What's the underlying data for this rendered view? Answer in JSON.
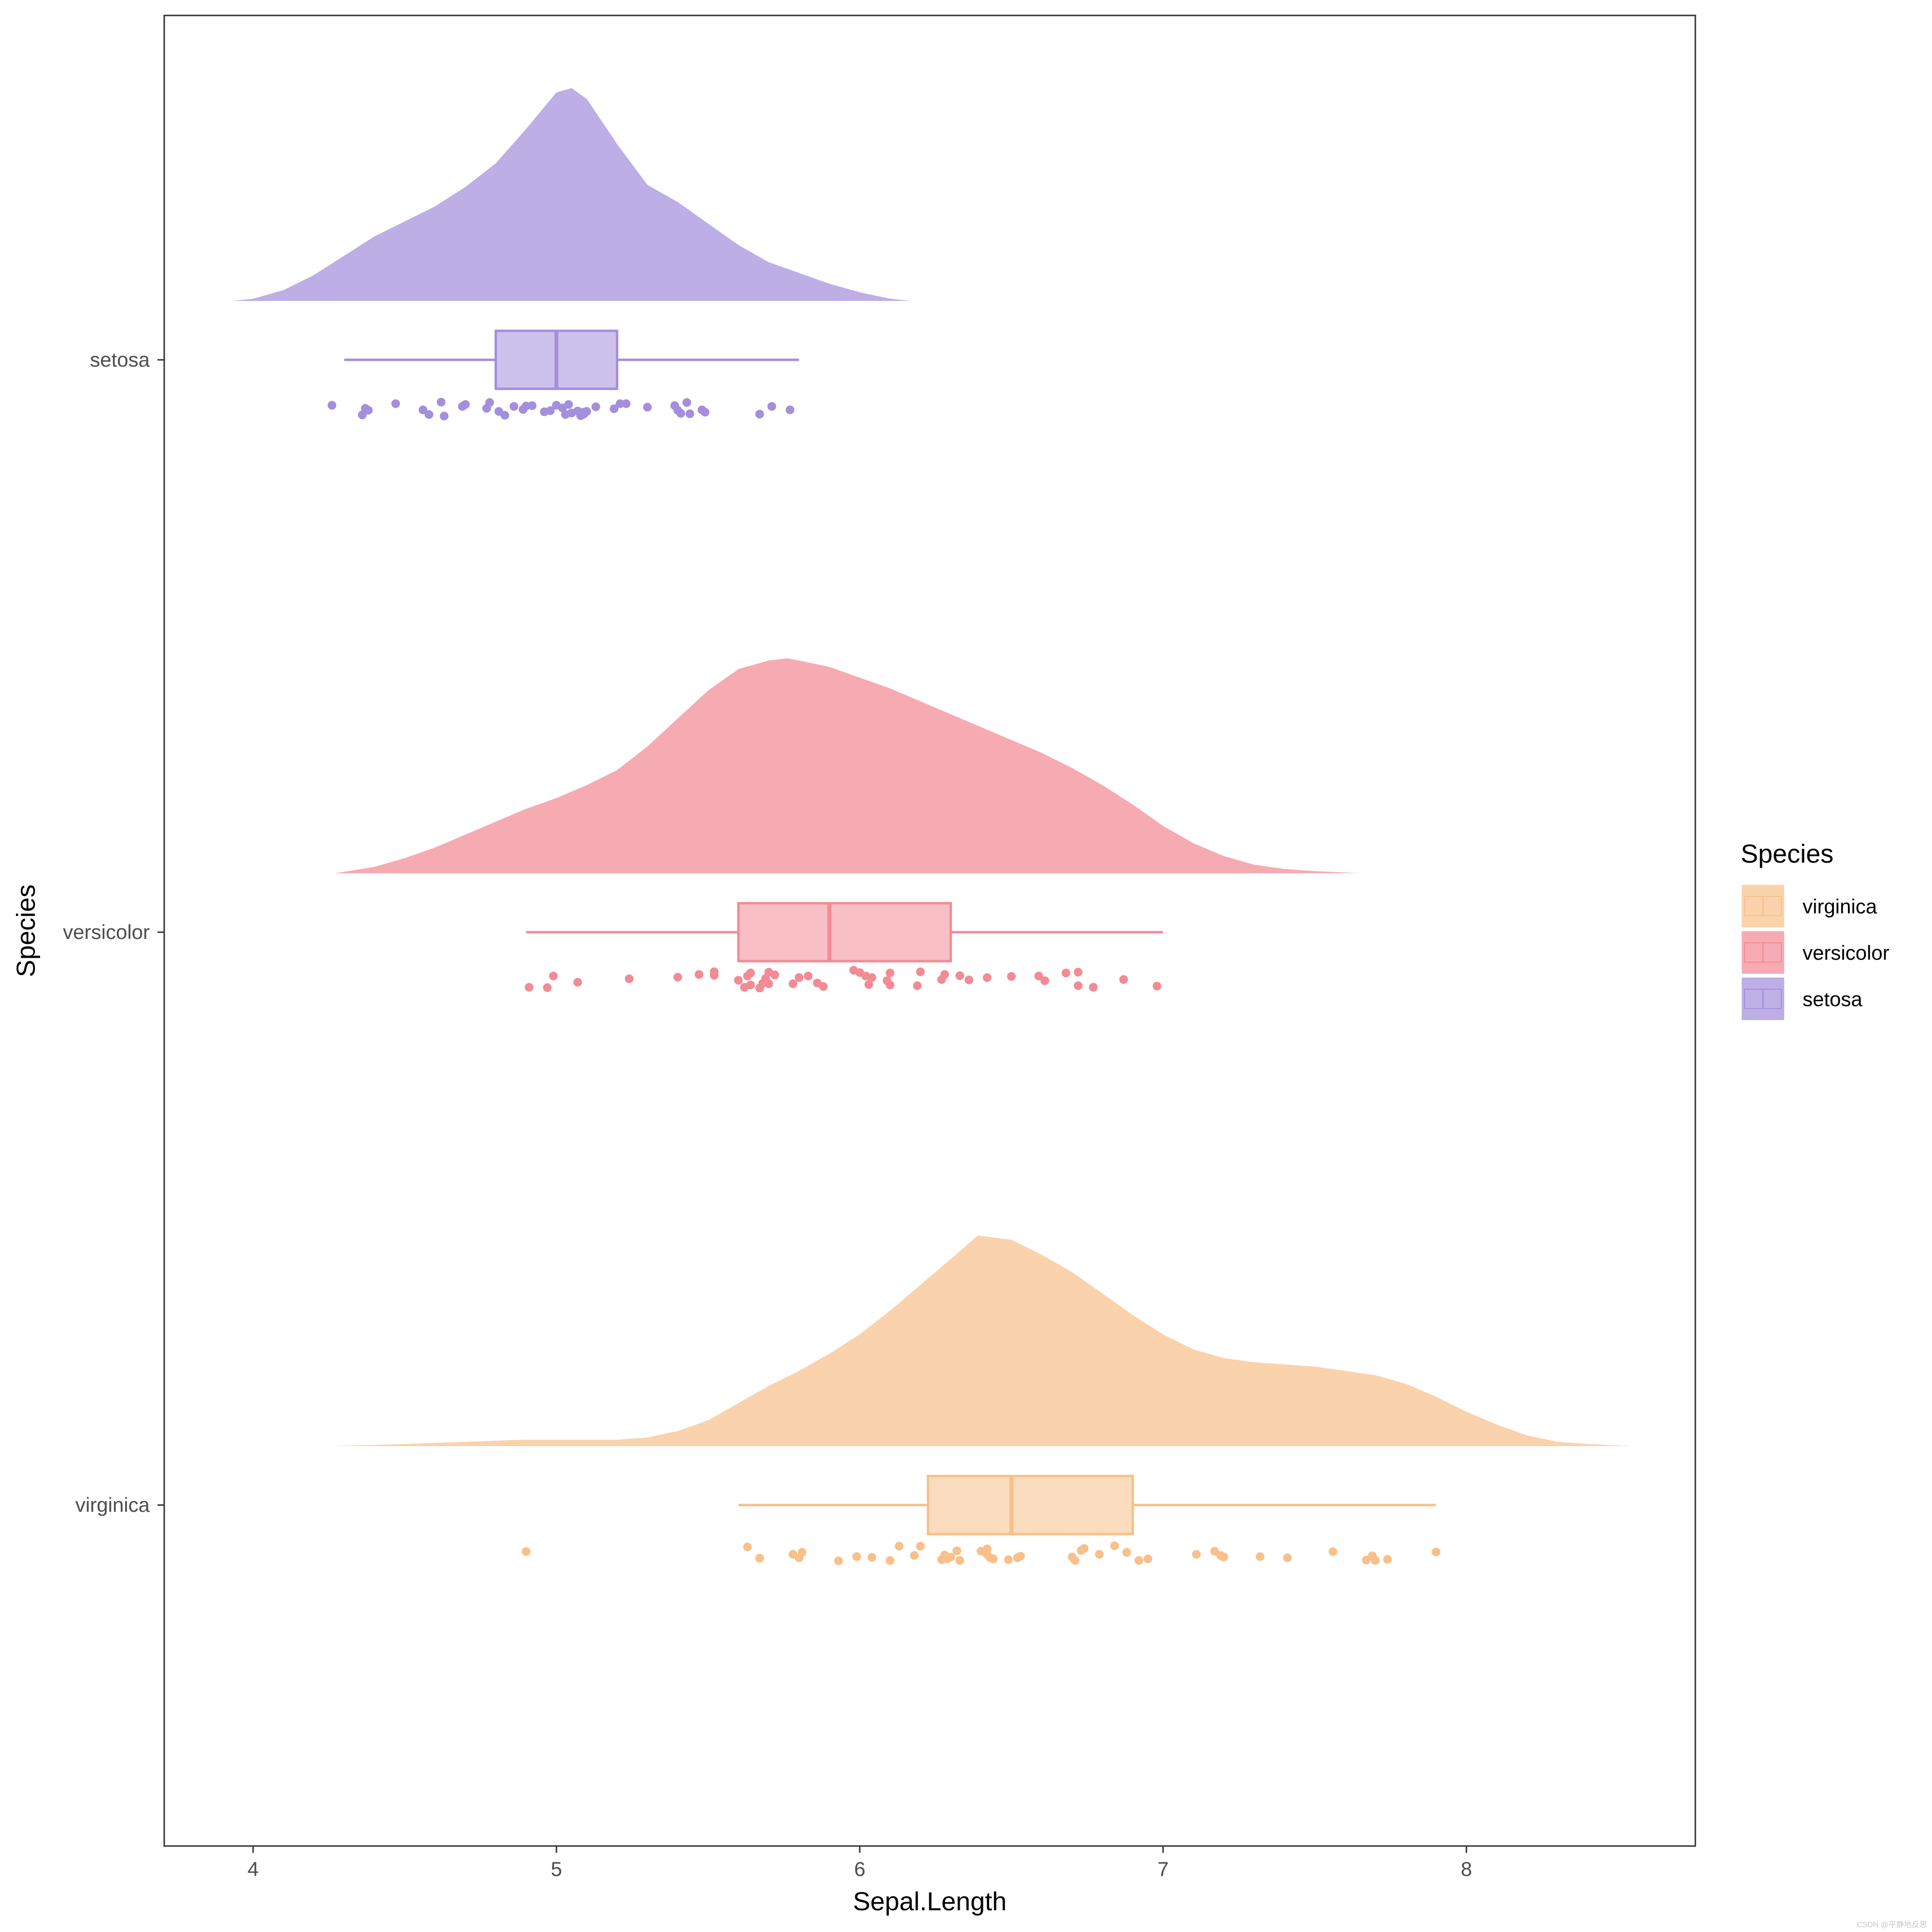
{
  "chart_data": {
    "type": "raincloud",
    "xlabel": "Sepal.Length",
    "ylabel": "Species",
    "xlim": [
      3.7,
      8.75
    ],
    "x_ticks": [
      4,
      5,
      6,
      7,
      8
    ],
    "grid": false,
    "legend": {
      "title": "Species",
      "placement": "right",
      "entries": [
        {
          "label": "virginica",
          "color": "#F8C08A"
        },
        {
          "label": "versicolor",
          "color": "#F28B95"
        },
        {
          "label": "setosa",
          "color": "#A38FDC"
        }
      ]
    },
    "categories": [
      "setosa",
      "versicolor",
      "virginica"
    ],
    "series": [
      {
        "name": "setosa",
        "color": "#A38FDC",
        "box": {
          "min": 4.3,
          "q1": 4.8,
          "median": 5.0,
          "q3": 5.2,
          "max": 5.8
        },
        "density": {
          "x": [
            3.93,
            4.0,
            4.1,
            4.2,
            4.3,
            4.4,
            4.5,
            4.6,
            4.7,
            4.8,
            4.9,
            5.0,
            5.05,
            5.1,
            5.2,
            5.3,
            5.4,
            5.5,
            5.6,
            5.7,
            5.8,
            5.9,
            6.0,
            6.1,
            6.17
          ],
          "y": [
            0.0,
            0.01,
            0.05,
            0.12,
            0.21,
            0.3,
            0.37,
            0.44,
            0.53,
            0.64,
            0.8,
            0.97,
            0.99,
            0.94,
            0.73,
            0.54,
            0.46,
            0.36,
            0.26,
            0.18,
            0.13,
            0.08,
            0.04,
            0.01,
            0.0
          ]
        },
        "points": [
          [
            4.26,
            0.7
          ],
          [
            4.36,
            0.95
          ],
          [
            4.37,
            0.78
          ],
          [
            4.38,
            0.83
          ],
          [
            4.47,
            0.66
          ],
          [
            4.56,
            0.82
          ],
          [
            4.58,
            0.94
          ],
          [
            4.62,
            0.62
          ],
          [
            4.63,
            0.98
          ],
          [
            4.69,
            0.73
          ],
          [
            4.7,
            0.68
          ],
          [
            4.77,
            0.78
          ],
          [
            4.78,
            0.63
          ],
          [
            4.81,
            0.86
          ],
          [
            4.83,
            0.96
          ],
          [
            4.86,
            0.73
          ],
          [
            4.89,
            0.81
          ],
          [
            4.9,
            0.72
          ],
          [
            4.92,
            0.71
          ],
          [
            4.96,
            0.87
          ],
          [
            4.98,
            0.84
          ],
          [
            5.0,
            0.7
          ],
          [
            5.02,
            0.77
          ],
          [
            5.03,
            0.94
          ],
          [
            5.04,
            0.68
          ],
          [
            5.05,
            0.9
          ],
          [
            5.07,
            0.85
          ],
          [
            5.08,
            0.97
          ],
          [
            5.09,
            0.88
          ],
          [
            5.09,
            0.93
          ],
          [
            5.1,
            0.86
          ],
          [
            5.13,
            0.74
          ],
          [
            5.19,
            0.79
          ],
          [
            5.21,
            0.66
          ],
          [
            5.23,
            0.66
          ],
          [
            5.3,
            0.75
          ],
          [
            5.39,
            0.71
          ],
          [
            5.4,
            0.83
          ],
          [
            5.41,
            0.91
          ],
          [
            5.43,
            0.63
          ],
          [
            5.44,
            0.92
          ],
          [
            5.48,
            0.82
          ],
          [
            5.49,
            0.88
          ],
          [
            5.67,
            0.93
          ],
          [
            5.71,
            0.73
          ],
          [
            5.77,
            0.82
          ]
        ]
      },
      {
        "name": "versicolor",
        "color": "#F28B95",
        "box": {
          "min": 4.9,
          "q1": 5.6,
          "median": 5.9,
          "q3": 6.3,
          "max": 7.0
        },
        "density": {
          "x": [
            4.27,
            4.4,
            4.5,
            4.6,
            4.7,
            4.8,
            4.9,
            5.0,
            5.1,
            5.2,
            5.3,
            5.4,
            5.5,
            5.6,
            5.7,
            5.76,
            5.8,
            5.9,
            6.0,
            6.1,
            6.2,
            6.3,
            6.4,
            6.5,
            6.6,
            6.7,
            6.8,
            6.9,
            7.0,
            7.1,
            7.2,
            7.3,
            7.4,
            7.5,
            7.65
          ],
          "y": [
            0.0,
            0.03,
            0.07,
            0.12,
            0.18,
            0.24,
            0.3,
            0.35,
            0.41,
            0.48,
            0.59,
            0.72,
            0.85,
            0.95,
            0.99,
            1.0,
            0.99,
            0.96,
            0.91,
            0.86,
            0.8,
            0.74,
            0.68,
            0.62,
            0.56,
            0.49,
            0.41,
            0.32,
            0.22,
            0.14,
            0.08,
            0.04,
            0.02,
            0.01,
            0.0
          ]
        },
        "points": [
          [
            4.91,
            0.95
          ],
          [
            4.97,
            0.96
          ],
          [
            4.99,
            0.66
          ],
          [
            5.07,
            0.82
          ],
          [
            5.24,
            0.73
          ],
          [
            5.4,
            0.69
          ],
          [
            5.47,
            0.62
          ],
          [
            5.52,
            0.55
          ],
          [
            5.52,
            0.64
          ],
          [
            5.6,
            0.77
          ],
          [
            5.62,
            0.95
          ],
          [
            5.63,
            0.66
          ],
          [
            5.64,
            0.89
          ],
          [
            5.64,
            0.58
          ],
          [
            5.67,
            0.97
          ],
          [
            5.68,
            0.85
          ],
          [
            5.69,
            0.72
          ],
          [
            5.7,
            0.56
          ],
          [
            5.7,
            0.86
          ],
          [
            5.72,
            0.63
          ],
          [
            5.78,
            0.86
          ],
          [
            5.8,
            0.7
          ],
          [
            5.83,
            0.66
          ],
          [
            5.86,
            0.84
          ],
          [
            5.88,
            0.93
          ],
          [
            5.98,
            0.51
          ],
          [
            6.0,
            0.57
          ],
          [
            6.02,
            0.66
          ],
          [
            6.03,
            0.88
          ],
          [
            6.04,
            0.7
          ],
          [
            6.09,
            0.78
          ],
          [
            6.1,
            0.58
          ],
          [
            6.1,
            0.89
          ],
          [
            6.19,
            0.91
          ],
          [
            6.2,
            0.55
          ],
          [
            6.27,
            0.75
          ],
          [
            6.28,
            0.62
          ],
          [
            6.33,
            0.65
          ],
          [
            6.36,
            0.76
          ],
          [
            6.42,
            0.7
          ],
          [
            6.5,
            0.67
          ],
          [
            6.59,
            0.66
          ],
          [
            6.61,
            0.78
          ],
          [
            6.68,
            0.58
          ],
          [
            6.72,
            0.56
          ],
          [
            6.72,
            0.91
          ],
          [
            6.77,
            0.95
          ],
          [
            6.87,
            0.75
          ],
          [
            6.98,
            0.92
          ]
        ]
      },
      {
        "name": "virginica",
        "color": "#F8C08A",
        "box": {
          "min": 5.6,
          "q1": 6.225,
          "median": 6.5,
          "q3": 6.9,
          "max": 7.9
        },
        "density": {
          "x": [
            4.27,
            4.5,
            4.7,
            4.9,
            5.0,
            5.1,
            5.2,
            5.3,
            5.4,
            5.5,
            5.6,
            5.7,
            5.8,
            5.9,
            6.0,
            6.1,
            6.2,
            6.3,
            6.39,
            6.5,
            6.6,
            6.7,
            6.8,
            6.9,
            7.0,
            7.1,
            7.2,
            7.3,
            7.4,
            7.5,
            7.6,
            7.7,
            7.8,
            7.9,
            8.0,
            8.1,
            8.2,
            8.3,
            8.4,
            8.54
          ],
          "y": [
            0.0,
            0.01,
            0.02,
            0.03,
            0.03,
            0.03,
            0.03,
            0.04,
            0.07,
            0.12,
            0.2,
            0.28,
            0.35,
            0.43,
            0.52,
            0.63,
            0.75,
            0.87,
            0.98,
            0.96,
            0.89,
            0.81,
            0.71,
            0.61,
            0.52,
            0.45,
            0.41,
            0.39,
            0.38,
            0.37,
            0.35,
            0.33,
            0.29,
            0.23,
            0.16,
            0.1,
            0.05,
            0.02,
            0.01,
            0.0
          ]
        },
        "points": [
          [
            4.9,
            0.73
          ],
          [
            5.63,
            0.61
          ],
          [
            5.67,
            0.9
          ],
          [
            5.78,
            0.8
          ],
          [
            5.8,
            0.89
          ],
          [
            5.81,
            0.75
          ],
          [
            5.93,
            0.97
          ],
          [
            5.99,
            0.86
          ],
          [
            6.04,
            0.88
          ],
          [
            6.1,
            0.96
          ],
          [
            6.13,
            0.59
          ],
          [
            6.18,
            0.83
          ],
          [
            6.2,
            0.59
          ],
          [
            6.27,
            0.94
          ],
          [
            6.28,
            0.82
          ],
          [
            6.29,
            0.92
          ],
          [
            6.3,
            0.87
          ],
          [
            6.32,
            0.71
          ],
          [
            6.33,
            0.96
          ],
          [
            6.4,
            0.72
          ],
          [
            6.42,
            0.8
          ],
          [
            6.42,
            0.66
          ],
          [
            6.43,
            0.89
          ],
          [
            6.44,
            0.92
          ],
          [
            6.49,
            0.94
          ],
          [
            6.52,
            0.89
          ],
          [
            6.53,
            0.85
          ],
          [
            6.7,
            0.87
          ],
          [
            6.71,
            0.96
          ],
          [
            6.73,
            0.7
          ],
          [
            6.74,
            0.65
          ],
          [
            6.79,
            0.8
          ],
          [
            6.84,
            0.58
          ],
          [
            6.88,
            0.75
          ],
          [
            6.92,
            0.96
          ],
          [
            6.95,
            0.92
          ],
          [
            7.11,
            0.8
          ],
          [
            7.17,
            0.72
          ],
          [
            7.19,
            0.83
          ],
          [
            7.2,
            0.87
          ],
          [
            7.32,
            0.86
          ],
          [
            7.41,
            0.89
          ],
          [
            7.56,
            0.73
          ],
          [
            7.67,
            0.95
          ],
          [
            7.69,
            0.84
          ],
          [
            7.7,
            0.96
          ],
          [
            7.74,
            0.93
          ],
          [
            7.9,
            0.74
          ]
        ]
      }
    ]
  },
  "watermark": "CSDN @平静地反思"
}
